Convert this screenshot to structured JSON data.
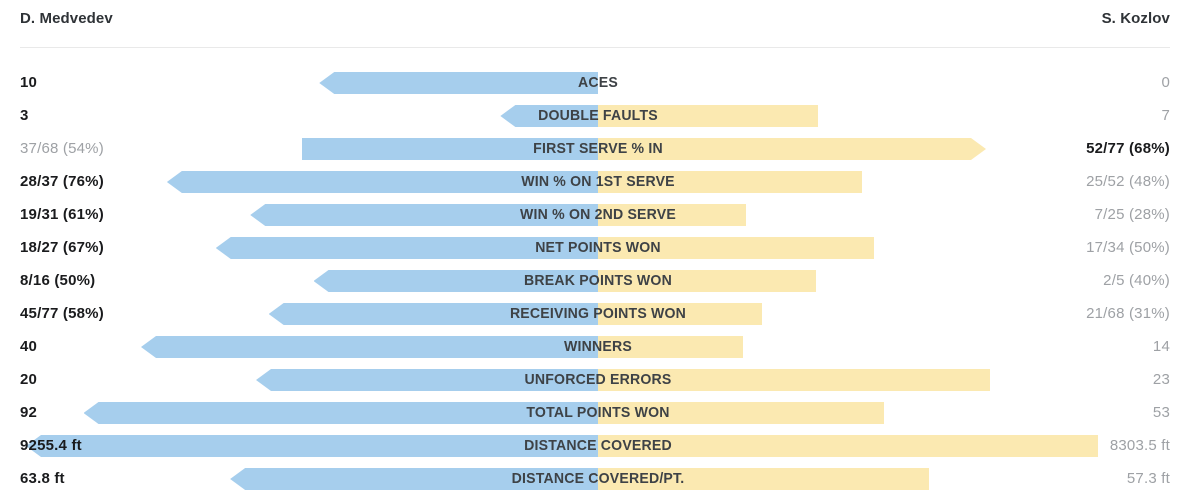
{
  "header": {
    "left_player": "D. Medvedev",
    "right_player": "S. Kozlov"
  },
  "colors": {
    "background": "#ffffff",
    "left_bar": "#a6ceed",
    "right_bar": "#fbe9b1",
    "label_text": "#3e4246",
    "value_strong": "#1a1b1d",
    "value_muted": "#9ea1a5",
    "divider": "#e9e9e9"
  },
  "chart_data": {
    "type": "bar",
    "orientation": "diverging-horizontal",
    "title": "",
    "legend_position": "top",
    "grid": false,
    "bar_scale_note": "pct = bar length as percent of half-width from the center line; arrow marks the stat winner's bar end",
    "players": [
      "D. Medvedev",
      "S. Kozlov"
    ],
    "rows": [
      {
        "label": "ACES",
        "left": {
          "text": "10",
          "pct": 49,
          "emphasis": true,
          "arrow": true
        },
        "right": {
          "text": "0",
          "pct": 0,
          "emphasis": false,
          "arrow": false
        }
      },
      {
        "label": "DOUBLE FAULTS",
        "left": {
          "text": "3",
          "pct": 17.5,
          "emphasis": true,
          "arrow": true
        },
        "right": {
          "text": "7",
          "pct": 38.8,
          "emphasis": false,
          "arrow": false
        }
      },
      {
        "label": "FIRST SERVE % IN",
        "left": {
          "text": "37/68 (54%)",
          "pct": 52,
          "emphasis": false,
          "arrow": false
        },
        "right": {
          "text": "52/77 (68%)",
          "pct": 68,
          "emphasis": true,
          "arrow": true
        }
      },
      {
        "label": "WIN % ON 1ST SERVE",
        "left": {
          "text": "28/37 (76%)",
          "pct": 75.5,
          "emphasis": true,
          "arrow": true
        },
        "right": {
          "text": "25/52 (48%)",
          "pct": 46.5,
          "emphasis": false,
          "arrow": false
        }
      },
      {
        "label": "WIN % ON 2ND SERVE",
        "left": {
          "text": "19/31 (61%)",
          "pct": 61,
          "emphasis": true,
          "arrow": true
        },
        "right": {
          "text": "7/25 (28%)",
          "pct": 26.2,
          "emphasis": false,
          "arrow": false
        }
      },
      {
        "label": "NET POINTS WON",
        "left": {
          "text": "18/27 (67%)",
          "pct": 67,
          "emphasis": true,
          "arrow": true
        },
        "right": {
          "text": "17/34 (50%)",
          "pct": 48.6,
          "emphasis": false,
          "arrow": false
        }
      },
      {
        "label": "BREAK POINTS WON",
        "left": {
          "text": "8/16 (50%)",
          "pct": 50,
          "emphasis": true,
          "arrow": true
        },
        "right": {
          "text": "2/5 (40%)",
          "pct": 38.5,
          "emphasis": false,
          "arrow": false
        }
      },
      {
        "label": "RECEIVING POINTS WON",
        "left": {
          "text": "45/77 (58%)",
          "pct": 57.8,
          "emphasis": true,
          "arrow": true
        },
        "right": {
          "text": "21/68 (31%)",
          "pct": 29,
          "emphasis": false,
          "arrow": false
        }
      },
      {
        "label": "WINNERS",
        "left": {
          "text": "40",
          "pct": 80,
          "emphasis": true,
          "arrow": true
        },
        "right": {
          "text": "14",
          "pct": 25.8,
          "emphasis": false,
          "arrow": false
        }
      },
      {
        "label": "UNFORCED ERRORS",
        "left": {
          "text": "20",
          "pct": 60,
          "emphasis": true,
          "arrow": true
        },
        "right": {
          "text": "23",
          "pct": 68.7,
          "emphasis": false,
          "arrow": false
        }
      },
      {
        "label": "TOTAL POINTS WON",
        "left": {
          "text": "92",
          "pct": 90,
          "emphasis": true,
          "arrow": true
        },
        "right": {
          "text": "53",
          "pct": 50.2,
          "emphasis": false,
          "arrow": false
        }
      },
      {
        "label": "DISTANCE COVERED",
        "left": {
          "text": "9255.4 ft",
          "pct": 100,
          "emphasis": true,
          "arrow": true
        },
        "right": {
          "text": "8303.5 ft",
          "pct": 87.5,
          "emphasis": false,
          "arrow": false
        }
      },
      {
        "label": "DISTANCE COVERED/PT.",
        "left": {
          "text": "63.8 ft",
          "pct": 64.5,
          "emphasis": true,
          "arrow": true
        },
        "right": {
          "text": "57.3 ft",
          "pct": 58,
          "emphasis": false,
          "arrow": false
        }
      }
    ]
  }
}
